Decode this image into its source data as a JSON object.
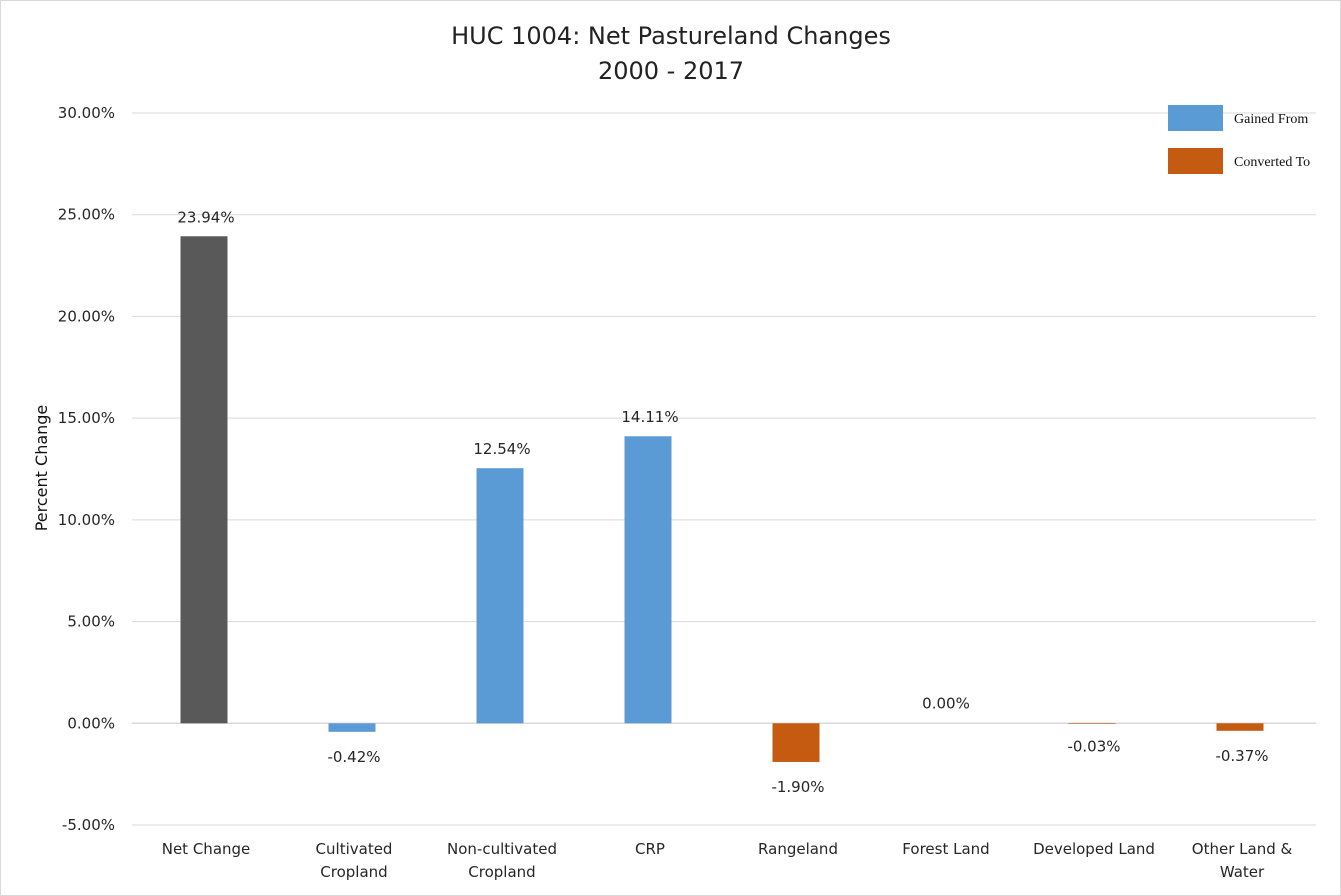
{
  "chart_data": {
    "type": "bar",
    "title": "HUC 1004: Net Pastureland Changes",
    "subtitle": "2000 - 2017",
    "ylabel": "Percent Change",
    "xlabel": "",
    "ylim": [
      -5,
      30
    ],
    "yticks": [
      "30.00%",
      "25.00%",
      "20.00%",
      "15.00%",
      "10.00%",
      "5.00%",
      "0.00%",
      "-5.00%"
    ],
    "ytick_values": [
      30,
      25,
      20,
      15,
      10,
      5,
      0,
      -5
    ],
    "grid": true,
    "legend_position": "top-right",
    "legend": [
      {
        "name": "Gained From",
        "color": "#5b9bd5"
      },
      {
        "name": "Converted To",
        "color": "#c55a11"
      }
    ],
    "categories": [
      [
        "Net Change"
      ],
      [
        "Cultivated",
        "Cropland"
      ],
      [
        "Non-cultivated",
        "Cropland"
      ],
      [
        "CRP"
      ],
      [
        "Rangeland"
      ],
      [
        "Forest Land"
      ],
      [
        "Developed Land"
      ],
      [
        "Other Land &",
        "Water"
      ]
    ],
    "values": [
      23.94,
      -0.42,
      12.54,
      14.11,
      -1.9,
      0.0,
      -0.03,
      -0.37
    ],
    "data_labels": [
      "23.94%",
      "-0.42%",
      "12.54%",
      "14.11%",
      "-1.90%",
      "0.00%",
      "-0.03%",
      "-0.37%"
    ],
    "bar_colors": [
      "#595959",
      "#5b9bd5",
      "#5b9bd5",
      "#5b9bd5",
      "#c55a11",
      "#5b9bd5",
      "#c55a11",
      "#c55a11"
    ]
  }
}
